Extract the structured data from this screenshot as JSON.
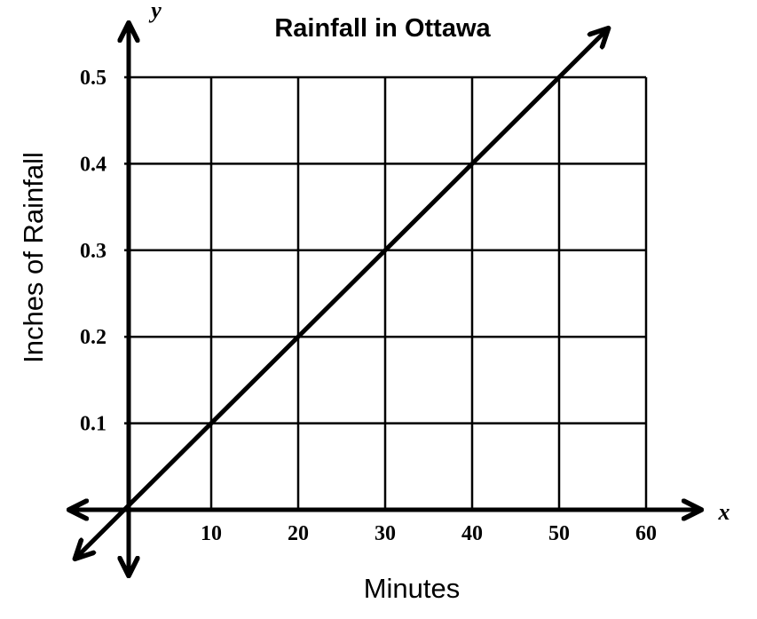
{
  "chart_data": {
    "type": "line",
    "title": "Rainfall in Ottawa",
    "xlabel": "Minutes",
    "ylabel": "Inches of Rainfall",
    "x_axis_letter": "x",
    "y_axis_letter": "y",
    "xlim": [
      0,
      60
    ],
    "ylim": [
      0,
      0.5
    ],
    "x_ticks": [
      10,
      20,
      30,
      40,
      50,
      60
    ],
    "y_ticks": [
      0.1,
      0.2,
      0.3,
      0.4,
      0.5
    ],
    "x_tick_labels": [
      "10",
      "20",
      "30",
      "40",
      "50",
      "60"
    ],
    "y_tick_labels": [
      "0.1",
      "0.2",
      "0.3",
      "0.4",
      "0.5"
    ],
    "grid": true,
    "series": [
      {
        "x": [
          0,
          10,
          20,
          30,
          40,
          50
        ],
        "y": [
          0,
          0.1,
          0.2,
          0.3,
          0.4,
          0.5
        ]
      }
    ],
    "line_extends_both_directions": true,
    "color": "#000000"
  }
}
